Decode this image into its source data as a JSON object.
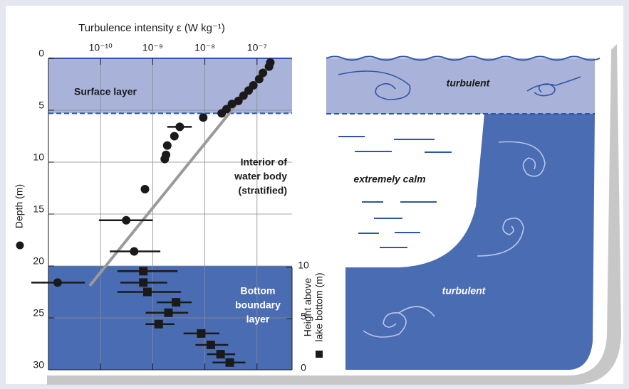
{
  "chart_data": {
    "type": "scatter",
    "title": "Turbulence intensity ε (W kg⁻¹)",
    "y_label": "Depth (m)",
    "y2_label_lines": [
      "Height above",
      "lake bottom (m)"
    ],
    "x_log": true,
    "xlim": [
      1e-11,
      4.7e-07
    ],
    "xticks": [
      {
        "value": 1e-10,
        "label": "10⁻¹⁰"
      },
      {
        "value": 1e-09,
        "label": "10⁻⁹"
      },
      {
        "value": 1e-08,
        "label": "10⁻⁸"
      },
      {
        "value": 1e-07,
        "label": "10⁻⁷"
      }
    ],
    "ylim": [
      0,
      30
    ],
    "y_inverted": true,
    "yticks": [
      0,
      5,
      10,
      15,
      20,
      25,
      30
    ],
    "y2lim": [
      0,
      10
    ],
    "y2ticks": [
      0,
      5,
      10
    ],
    "grid": true,
    "regions": [
      {
        "label_lines": [
          "Surface layer"
        ],
        "ylim": [
          0,
          5.3
        ],
        "color": "#a9b2d9"
      },
      {
        "label_lines": [
          "Bottom",
          "boundary",
          "layer"
        ],
        "ylim": [
          20,
          30
        ],
        "color": "#4a6cb3"
      }
    ],
    "annotation_lines": [
      "Interior of",
      "water body",
      "(stratified)"
    ],
    "trend_line": {
      "x": [
        1.95e-07,
        6.2e-11
      ],
      "y": [
        0.2,
        21.9
      ],
      "color": "#9a9a9a"
    },
    "series": [
      {
        "marker": "circle",
        "color": "#1a1a1a",
        "x": [
          1.8e-07,
          1.7e-07,
          1.3e-07,
          1.1e-07,
          8.5e-08,
          6.9e-08,
          5.5e-08,
          4.4e-08,
          3.3e-08,
          2.6e-08,
          2.1e-08,
          9.3e-09,
          3.3e-09,
          2.6e-09,
          1.9e-09,
          1.8e-09,
          1.7e-09,
          7.1e-10,
          3.1e-10,
          4.4e-10,
          1.5e-11
        ],
        "y": [
          0.4,
          0.8,
          1.4,
          2.0,
          2.6,
          3.1,
          3.6,
          4.1,
          4.4,
          4.9,
          5.3,
          5.7,
          6.6,
          7.5,
          8.4,
          9.3,
          9.7,
          12.6,
          15.6,
          18.6,
          21.6
        ],
        "xerr_low": [
          null,
          null,
          null,
          null,
          null,
          null,
          null,
          null,
          null,
          null,
          null,
          null,
          1.9e-09,
          null,
          null,
          null,
          null,
          null,
          9.3e-11,
          1.5e-10,
          4.7e-12
        ],
        "xerr_high": [
          null,
          null,
          null,
          null,
          null,
          null,
          null,
          null,
          null,
          null,
          null,
          null,
          5.6e-09,
          null,
          null,
          null,
          null,
          null,
          1e-09,
          1.4e-09,
          5e-11
        ]
      },
      {
        "marker": "square",
        "color": "#1a1a1a",
        "x": [
          6.6e-10,
          6.6e-10,
          7.9e-10,
          2.8e-09,
          2e-09,
          1.3e-09,
          8.5e-09,
          1.3e-08,
          2e-08,
          3e-08
        ],
        "y": [
          20.5,
          21.6,
          22.5,
          23.5,
          24.5,
          25.6,
          26.5,
          27.6,
          28.5,
          29.3
        ],
        "xerr_low": [
          2.1e-10,
          2.4e-10,
          2.1e-10,
          1.2e-09,
          7.3e-10,
          7.3e-10,
          3.9e-09,
          6.6e-09,
          1.1e-08,
          1.4e-08
        ],
        "xerr_high": [
          3e-09,
          1.9e-09,
          3.5e-09,
          5.6e-09,
          4.8e-09,
          2.6e-09,
          1.9e-08,
          2.8e-08,
          3.8e-08,
          6e-08
        ]
      }
    ]
  },
  "diagram": {
    "labels": [
      "turbulent",
      "extremely calm",
      "turbulent"
    ]
  }
}
